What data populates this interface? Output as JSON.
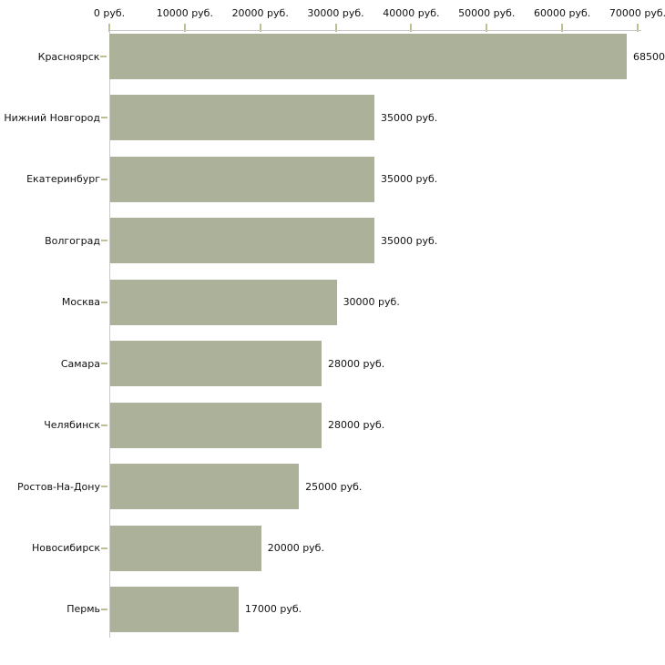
{
  "chart_data": {
    "type": "bar",
    "orientation": "horizontal",
    "title": "",
    "categories": [
      "Красноярск",
      "Нижний Новгород",
      "Екатеринбург",
      "Волгоград",
      "Москва",
      "Самара",
      "Челябинск",
      "Ростов-На-Дону",
      "Новосибирск",
      "Пермь"
    ],
    "values": [
      68500,
      35000,
      35000,
      35000,
      30000,
      28000,
      28000,
      25000,
      20000,
      17000
    ],
    "value_labels": [
      "68500",
      "35000 руб.",
      "35000 руб.",
      "35000 руб.",
      "30000 руб.",
      "28000 руб.",
      "28000 руб.",
      "25000 руб.",
      "20000 руб.",
      "17000 руб."
    ],
    "x_axis": {
      "position": "top",
      "min": 0,
      "max": 70000,
      "tick_values": [
        0,
        10000,
        20000,
        30000,
        40000,
        50000,
        60000,
        70000
      ],
      "tick_labels": [
        "0 руб.",
        "10000 руб.",
        "20000 руб.",
        "30000 руб.",
        "40000 руб.",
        "50000 руб.",
        "60000 руб.",
        "70000 руб."
      ]
    },
    "legend": "none",
    "grid": "off",
    "colors": {
      "bar": "#acb29a",
      "axis_line": "#c9c9c9",
      "tick": "#bec091",
      "text": "#111111",
      "background": "#ffffff"
    }
  }
}
